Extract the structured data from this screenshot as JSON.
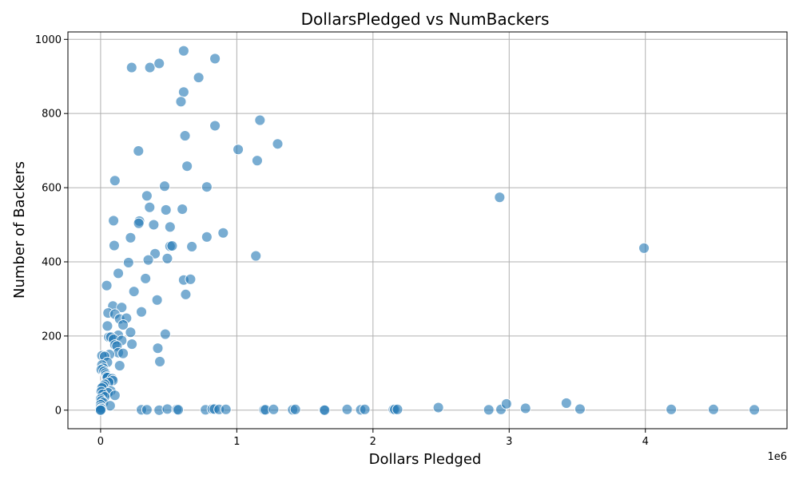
{
  "chart_data": {
    "type": "scatter",
    "title": "DollarsPledged vs NumBackers",
    "xlabel": "Dollars Pledged",
    "ylabel": "Number of Backers",
    "x_offset_text": "1e6",
    "xlim": [
      -0.24,
      5.04
    ],
    "ylim": [
      -50,
      1020
    ],
    "x_ticks": [
      0,
      1,
      2,
      3,
      4
    ],
    "x_tick_labels": [
      "0",
      "1",
      "2",
      "3",
      "4"
    ],
    "y_ticks": [
      0,
      200,
      400,
      600,
      800,
      1000
    ],
    "y_tick_labels": [
      "0",
      "200",
      "400",
      "600",
      "800",
      "1000"
    ],
    "x_unit_note": "x values in millions of dollars (1e6)",
    "grid": true,
    "point_color": "#1f77b4",
    "series": [
      {
        "points": [
          [
            0.228,
            924
          ],
          [
            0.362,
            924
          ],
          [
            0.43,
            935
          ],
          [
            0.61,
            969
          ],
          [
            0.84,
            948
          ],
          [
            0.72,
            897
          ],
          [
            0.61,
            858
          ],
          [
            0.59,
            832
          ],
          [
            1.17,
            782
          ],
          [
            0.84,
            767
          ],
          [
            0.62,
            740
          ],
          [
            1.3,
            718
          ],
          [
            1.01,
            703
          ],
          [
            0.278,
            699
          ],
          [
            1.15,
            673
          ],
          [
            0.635,
            658
          ],
          [
            0.105,
            619
          ],
          [
            0.47,
            604
          ],
          [
            0.78,
            602
          ],
          [
            0.34,
            578
          ],
          [
            0.36,
            547
          ],
          [
            0.6,
            542
          ],
          [
            0.48,
            540
          ],
          [
            0.095,
            511
          ],
          [
            0.285,
            510
          ],
          [
            0.28,
            504
          ],
          [
            0.39,
            500
          ],
          [
            0.51,
            494
          ],
          [
            0.9,
            478
          ],
          [
            0.78,
            467
          ],
          [
            0.22,
            465
          ],
          [
            0.1,
            444
          ],
          [
            0.51,
            442
          ],
          [
            0.525,
            443
          ],
          [
            0.67,
            441
          ],
          [
            0.4,
            422
          ],
          [
            1.14,
            416
          ],
          [
            0.49,
            409
          ],
          [
            0.35,
            405
          ],
          [
            0.205,
            398
          ],
          [
            0.13,
            369
          ],
          [
            0.33,
            355
          ],
          [
            0.61,
            351
          ],
          [
            0.66,
            353
          ],
          [
            0.045,
            336
          ],
          [
            0.245,
            320
          ],
          [
            0.625,
            312
          ],
          [
            0.415,
            297
          ],
          [
            0.09,
            281
          ],
          [
            0.155,
            277
          ],
          [
            0.3,
            265
          ],
          [
            0.055,
            262
          ],
          [
            0.105,
            259
          ],
          [
            0.14,
            246
          ],
          [
            0.19,
            248
          ],
          [
            0.165,
            230
          ],
          [
            0.05,
            227
          ],
          [
            0.22,
            210
          ],
          [
            0.475,
            205
          ],
          [
            0.13,
            202
          ],
          [
            0.06,
            197
          ],
          [
            0.075,
            197
          ],
          [
            0.095,
            191
          ],
          [
            0.155,
            188
          ],
          [
            0.23,
            178
          ],
          [
            0.105,
            176
          ],
          [
            0.12,
            173
          ],
          [
            0.42,
            167
          ],
          [
            0.13,
            155
          ],
          [
            0.165,
            153
          ],
          [
            0.065,
            150
          ],
          [
            0.01,
            147
          ],
          [
            0.03,
            145
          ],
          [
            0.435,
            131
          ],
          [
            0.05,
            129
          ],
          [
            0.01,
            122
          ],
          [
            0.14,
            120
          ],
          [
            0.02,
            113
          ],
          [
            0.005,
            109
          ],
          [
            0.025,
            105
          ],
          [
            0.035,
            100
          ],
          [
            0.04,
            95
          ],
          [
            0.045,
            90
          ],
          [
            0.05,
            88
          ],
          [
            0.085,
            85
          ],
          [
            0.09,
            80
          ],
          [
            0.06,
            75
          ],
          [
            0.03,
            70
          ],
          [
            0.02,
            65
          ],
          [
            0.01,
            60
          ],
          [
            0.075,
            52
          ],
          [
            0.005,
            50
          ],
          [
            0.055,
            47
          ],
          [
            0.015,
            43
          ],
          [
            0.105,
            40
          ],
          [
            0.03,
            36
          ],
          [
            0.0,
            30
          ],
          [
            0.005,
            25
          ],
          [
            0.02,
            20
          ],
          [
            0.0,
            15
          ],
          [
            0.07,
            12
          ],
          [
            0.0,
            8
          ],
          [
            0.005,
            4
          ],
          [
            0.0,
            1
          ],
          [
            0.0,
            0
          ],
          [
            0.3,
            1
          ],
          [
            0.34,
            1
          ],
          [
            0.43,
            0
          ],
          [
            0.49,
            3
          ],
          [
            0.56,
            2
          ],
          [
            0.57,
            1
          ],
          [
            0.77,
            1
          ],
          [
            0.82,
            3
          ],
          [
            0.835,
            3
          ],
          [
            0.87,
            2
          ],
          [
            0.92,
            2
          ],
          [
            1.2,
            1
          ],
          [
            1.21,
            1
          ],
          [
            1.27,
            2
          ],
          [
            1.41,
            1
          ],
          [
            1.43,
            2
          ],
          [
            1.64,
            1
          ],
          [
            1.645,
            0
          ],
          [
            1.81,
            2
          ],
          [
            1.91,
            1
          ],
          [
            1.94,
            2
          ],
          [
            2.15,
            2
          ],
          [
            2.16,
            2
          ],
          [
            2.18,
            2
          ],
          [
            2.48,
            7
          ],
          [
            2.85,
            1
          ],
          [
            2.93,
            574
          ],
          [
            2.94,
            2
          ],
          [
            2.98,
            17
          ],
          [
            3.12,
            5
          ],
          [
            3.42,
            19
          ],
          [
            3.52,
            3
          ],
          [
            3.99,
            437
          ],
          [
            4.19,
            2
          ],
          [
            4.5,
            2
          ],
          [
            4.8,
            1
          ]
        ]
      }
    ]
  }
}
